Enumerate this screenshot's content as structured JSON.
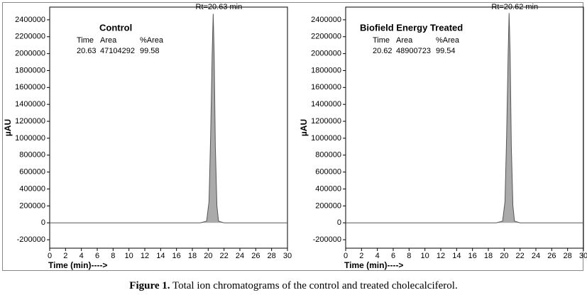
{
  "chart_data": [
    {
      "type": "line",
      "title": "Control",
      "annotation": "Rt=20.63  min",
      "table": {
        "headers": [
          "Time",
          "Area",
          "%Area"
        ],
        "row": [
          "20.63",
          "47104292",
          "99.58"
        ]
      },
      "x_label": "Time (min)---->",
      "y_label": "µAU",
      "x": [
        0,
        5,
        10,
        14,
        19,
        19.8,
        20.1,
        20.3,
        20.5,
        20.63,
        20.75,
        20.9,
        21.1,
        21.3,
        22,
        26,
        30
      ],
      "series": [
        {
          "name": "Control",
          "color": "#555555",
          "values": [
            0,
            0,
            0,
            0,
            0,
            20000,
            250000,
            1000000,
            2000000,
            2470000,
            2000000,
            900000,
            200000,
            20000,
            0,
            0,
            0
          ]
        }
      ],
      "xlim": [
        0,
        30
      ],
      "xticks": [
        0,
        2,
        4,
        6,
        8,
        10,
        12,
        14,
        16,
        18,
        20,
        22,
        24,
        26,
        28,
        30
      ],
      "ylim": [
        -300000,
        2550000
      ],
      "yticks": [
        -200000,
        0,
        200000,
        400000,
        600000,
        800000,
        1000000,
        1200000,
        1400000,
        1600000,
        1800000,
        2000000,
        2200000,
        2400000
      ]
    },
    {
      "type": "line",
      "title": "Biofield Energy Treated",
      "annotation": "Rt=20.62  min",
      "table": {
        "headers": [
          "Time",
          "Area",
          "%Area"
        ],
        "row": [
          "20.62",
          "48900723",
          "99.54"
        ]
      },
      "x_label": "Time (min)---->",
      "y_label": "µAU",
      "x": [
        0,
        5,
        10,
        14,
        19,
        19.8,
        20.1,
        20.3,
        20.5,
        20.62,
        20.75,
        20.9,
        21.1,
        21.3,
        22,
        26,
        30
      ],
      "series": [
        {
          "name": "Biofield Energy Treated",
          "color": "#555555",
          "values": [
            0,
            0,
            0,
            0,
            0,
            20000,
            250000,
            1000000,
            2000000,
            2480000,
            2000000,
            900000,
            200000,
            20000,
            0,
            0,
            0
          ]
        }
      ],
      "xlim": [
        0,
        30
      ],
      "xticks": [
        0,
        2,
        4,
        6,
        8,
        10,
        12,
        14,
        16,
        18,
        20,
        22,
        24,
        26,
        28,
        30
      ],
      "ylim": [
        -300000,
        2550000
      ],
      "yticks": [
        -200000,
        0,
        200000,
        400000,
        600000,
        800000,
        1000000,
        1200000,
        1400000,
        1600000,
        1800000,
        2000000,
        2200000,
        2400000
      ]
    }
  ],
  "caption": {
    "label": "Figure 1.",
    "text": "Total ion chromatograms of the control and treated cholecalciferol."
  }
}
